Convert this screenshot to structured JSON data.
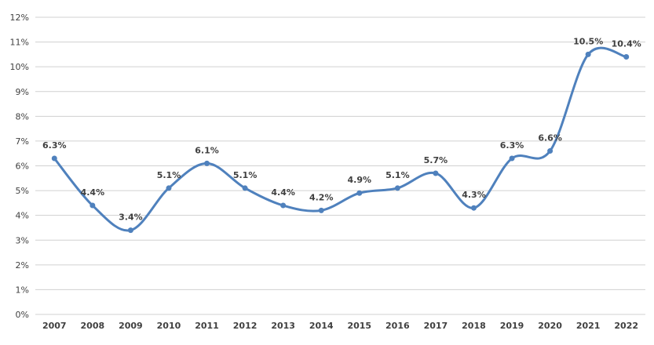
{
  "chart_data": {
    "type": "line",
    "title": "",
    "xlabel": "",
    "ylabel": "",
    "categories": [
      "2007",
      "2008",
      "2009",
      "2010",
      "2011",
      "2012",
      "2013",
      "2014",
      "2015",
      "2016",
      "2017",
      "2018",
      "2019",
      "2020",
      "2021",
      "2022"
    ],
    "series": [
      {
        "values": [
          6.3,
          4.4,
          3.4,
          5.1,
          6.1,
          5.1,
          4.4,
          4.2,
          4.9,
          5.1,
          5.7,
          4.3,
          6.3,
          6.6,
          10.5,
          10.4
        ],
        "labels": [
          "6.3%",
          "4.4%",
          "3.4%",
          "5.1%",
          "6.1%",
          "5.1%",
          "4.4%",
          "4.2%",
          "4.9%",
          "5.1%",
          "5.7%",
          "4.3%",
          "6.3%",
          "6.6%",
          "10.5%",
          "10.4%"
        ],
        "color": "#4f81bd"
      }
    ],
    "ylim": [
      0,
      12
    ],
    "y_ticks": [
      "0%",
      "1%",
      "2%",
      "3%",
      "4%",
      "5%",
      "6%",
      "7%",
      "8%",
      "9%",
      "10%",
      "11%",
      "12%"
    ],
    "grid": true,
    "smooth": true,
    "markers": true
  }
}
